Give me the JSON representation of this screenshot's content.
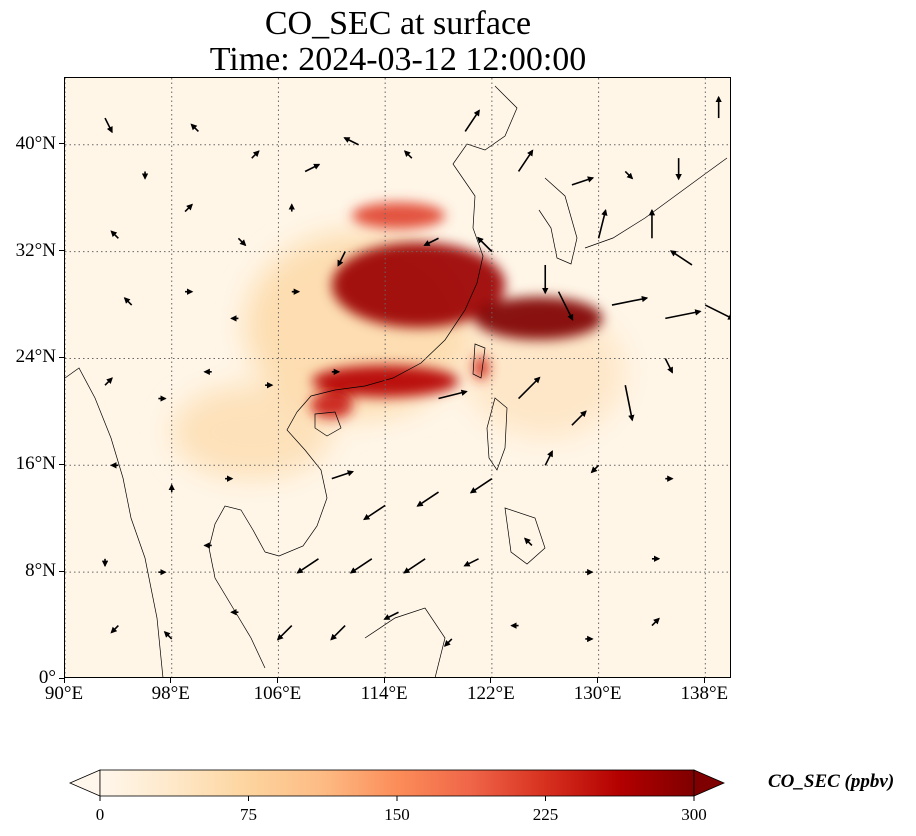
{
  "title": {
    "line1": "CO_SEC at surface",
    "line2": "Time: 2024-03-12 12:00:00"
  },
  "map": {
    "projection": "PlateCarree",
    "lon_range": [
      90,
      140
    ],
    "lat_range": [
      0,
      45
    ],
    "gridlines": "dotted",
    "background_color": "#fff6e8",
    "lat_ticks": [
      {
        "value": 0,
        "label": "0°"
      },
      {
        "value": 8,
        "label": "8°N"
      },
      {
        "value": 16,
        "label": "16°N"
      },
      {
        "value": 24,
        "label": "24°N"
      },
      {
        "value": 32,
        "label": "32°N"
      },
      {
        "value": 40,
        "label": "40°N"
      }
    ],
    "lon_ticks": [
      {
        "value": 90,
        "label": "90°E"
      },
      {
        "value": 98,
        "label": "98°E"
      },
      {
        "value": 106,
        "label": "106°E"
      },
      {
        "value": 114,
        "label": "114°E"
      },
      {
        "value": 122,
        "label": "122°E"
      },
      {
        "value": 130,
        "label": "130°E"
      },
      {
        "value": 138,
        "label": "138°E"
      }
    ],
    "field_regions": [
      {
        "name": "north-china-plain-plume",
        "lon": 116.5,
        "lat": 29.5,
        "rlon": 6.5,
        "rlat": 3.2,
        "level": 280
      },
      {
        "name": "east-china-sea-band",
        "lon": 125.5,
        "lat": 27.0,
        "rlon": 4.8,
        "rlat": 1.6,
        "level": 300
      },
      {
        "name": "south-china-coast-band",
        "lon": 114.0,
        "lat": 22.3,
        "rlon": 5.5,
        "rlat": 1.2,
        "level": 260
      },
      {
        "name": "hainan-gulf",
        "lon": 110.0,
        "lat": 20.5,
        "rlon": 1.6,
        "rlat": 1.0,
        "level": 240
      },
      {
        "name": "taiwan-spot",
        "lon": 121.2,
        "lat": 23.3,
        "rlon": 0.6,
        "rlat": 0.9,
        "level": 230
      },
      {
        "name": "northern-patch",
        "lon": 115.0,
        "lat": 34.7,
        "rlon": 3.5,
        "rlat": 1.0,
        "level": 210
      },
      {
        "name": "indochina-haze",
        "lon": 104.0,
        "lat": 18.5,
        "rlon": 6.0,
        "rlat": 3.5,
        "level": 60
      },
      {
        "name": "south-china-haze",
        "lon": 112.0,
        "lat": 26.5,
        "rlon": 8.5,
        "rlat": 7.0,
        "level": 70
      },
      {
        "name": "pacific-outflow-haze",
        "lon": 126.0,
        "lat": 23.0,
        "rlon": 6.0,
        "rlat": 5.0,
        "level": 45
      }
    ]
  },
  "colorbar": {
    "label": "CO_SEC (ppbv)",
    "min": 0,
    "max": 300,
    "extend": "both",
    "colormap": "OrRd",
    "stops": [
      "#fff7ec",
      "#fee8c8",
      "#fdd49e",
      "#fdbb84",
      "#fc8d59",
      "#ef6548",
      "#d7301f",
      "#b30000",
      "#7f0000"
    ],
    "ticks": [
      {
        "value": 0,
        "label": "0"
      },
      {
        "value": 75,
        "label": "75"
      },
      {
        "value": 150,
        "label": "150"
      },
      {
        "value": 225,
        "label": "225"
      },
      {
        "value": 300,
        "label": "300"
      }
    ]
  },
  "wind_vectors": [
    {
      "lon": 93,
      "lat": 42,
      "u": 1,
      "v": -2
    },
    {
      "lon": 96,
      "lat": 38,
      "u": 0,
      "v": -1
    },
    {
      "lon": 100,
      "lat": 41,
      "u": -1,
      "v": 1
    },
    {
      "lon": 104,
      "lat": 39,
      "u": 1,
      "v": 1
    },
    {
      "lon": 108,
      "lat": 38,
      "u": 2,
      "v": 1
    },
    {
      "lon": 112,
      "lat": 40,
      "u": -2,
      "v": 1
    },
    {
      "lon": 116,
      "lat": 39,
      "u": -1,
      "v": 1
    },
    {
      "lon": 120,
      "lat": 41,
      "u": 2,
      "v": 3
    },
    {
      "lon": 124,
      "lat": 38,
      "u": 2,
      "v": 3
    },
    {
      "lon": 128,
      "lat": 37,
      "u": 3,
      "v": 1
    },
    {
      "lon": 132,
      "lat": 38,
      "u": 1,
      "v": -1
    },
    {
      "lon": 136,
      "lat": 39,
      "u": 0,
      "v": -3
    },
    {
      "lon": 139,
      "lat": 42,
      "u": 0,
      "v": 3
    },
    {
      "lon": 94,
      "lat": 33,
      "u": -1,
      "v": 1
    },
    {
      "lon": 99,
      "lat": 35,
      "u": 1,
      "v": 1
    },
    {
      "lon": 103,
      "lat": 33,
      "u": 1,
      "v": -1
    },
    {
      "lon": 107,
      "lat": 35,
      "u": 0,
      "v": 1
    },
    {
      "lon": 111,
      "lat": 32,
      "u": -1,
      "v": -2
    },
    {
      "lon": 118,
      "lat": 33,
      "u": -2,
      "v": -1
    },
    {
      "lon": 122,
      "lat": 32,
      "u": -2,
      "v": 2
    },
    {
      "lon": 126,
      "lat": 31,
      "u": 0,
      "v": -4
    },
    {
      "lon": 130,
      "lat": 33,
      "u": 1,
      "v": 4
    },
    {
      "lon": 134,
      "lat": 33,
      "u": 0,
      "v": 4
    },
    {
      "lon": 137,
      "lat": 31,
      "u": -3,
      "v": 2
    },
    {
      "lon": 95,
      "lat": 28,
      "u": -1,
      "v": 1
    },
    {
      "lon": 99,
      "lat": 29,
      "u": 1,
      "v": 0
    },
    {
      "lon": 103,
      "lat": 27,
      "u": -1,
      "v": 0
    },
    {
      "lon": 107,
      "lat": 29,
      "u": 1,
      "v": 0
    },
    {
      "lon": 127,
      "lat": 29,
      "u": 2,
      "v": -4
    },
    {
      "lon": 131,
      "lat": 28,
      "u": 5,
      "v": 1
    },
    {
      "lon": 135,
      "lat": 27,
      "u": 5,
      "v": 1
    },
    {
      "lon": 138,
      "lat": 28,
      "u": 4,
      "v": -2
    },
    {
      "lon": 93,
      "lat": 22,
      "u": 1,
      "v": 1
    },
    {
      "lon": 97,
      "lat": 21,
      "u": 1,
      "v": 0
    },
    {
      "lon": 101,
      "lat": 23,
      "u": -1,
      "v": 0
    },
    {
      "lon": 105,
      "lat": 22,
      "u": 1,
      "v": 0
    },
    {
      "lon": 110,
      "lat": 23,
      "u": 1,
      "v": 0
    },
    {
      "lon": 118,
      "lat": 21,
      "u": 4,
      "v": 1
    },
    {
      "lon": 124,
      "lat": 21,
      "u": 3,
      "v": 3
    },
    {
      "lon": 128,
      "lat": 19,
      "u": 2,
      "v": 2
    },
    {
      "lon": 132,
      "lat": 22,
      "u": 1,
      "v": -5
    },
    {
      "lon": 135,
      "lat": 24,
      "u": 1,
      "v": -2
    },
    {
      "lon": 94,
      "lat": 16,
      "u": -1,
      "v": 0
    },
    {
      "lon": 98,
      "lat": 14,
      "u": 0,
      "v": 1
    },
    {
      "lon": 102,
      "lat": 15,
      "u": 1,
      "v": 0
    },
    {
      "lon": 110,
      "lat": 15,
      "u": 3,
      "v": 1
    },
    {
      "lon": 114,
      "lat": 13,
      "u": -3,
      "v": -2
    },
    {
      "lon": 118,
      "lat": 14,
      "u": -3,
      "v": -2
    },
    {
      "lon": 122,
      "lat": 15,
      "u": -3,
      "v": -2
    },
    {
      "lon": 126,
      "lat": 16,
      "u": 1,
      "v": 2
    },
    {
      "lon": 130,
      "lat": 16,
      "u": -1,
      "v": -1
    },
    {
      "lon": 135,
      "lat": 15,
      "u": 1,
      "v": 0
    },
    {
      "lon": 93,
      "lat": 9,
      "u": 0,
      "v": -1
    },
    {
      "lon": 97,
      "lat": 8,
      "u": 1,
      "v": 0
    },
    {
      "lon": 101,
      "lat": 10,
      "u": -1,
      "v": 0
    },
    {
      "lon": 109,
      "lat": 9,
      "u": -3,
      "v": -2
    },
    {
      "lon": 113,
      "lat": 9,
      "u": -3,
      "v": -2
    },
    {
      "lon": 117,
      "lat": 9,
      "u": -3,
      "v": -2
    },
    {
      "lon": 121,
      "lat": 9,
      "u": -2,
      "v": -1
    },
    {
      "lon": 125,
      "lat": 10,
      "u": -1,
      "v": 1
    },
    {
      "lon": 129,
      "lat": 8,
      "u": 1,
      "v": 0
    },
    {
      "lon": 134,
      "lat": 9,
      "u": 1,
      "v": 0
    },
    {
      "lon": 94,
      "lat": 4,
      "u": -1,
      "v": -1
    },
    {
      "lon": 98,
      "lat": 3,
      "u": -1,
      "v": 1
    },
    {
      "lon": 103,
      "lat": 5,
      "u": -1,
      "v": 0
    },
    {
      "lon": 107,
      "lat": 4,
      "u": -2,
      "v": -2
    },
    {
      "lon": 111,
      "lat": 4,
      "u": -2,
      "v": -2
    },
    {
      "lon": 115,
      "lat": 5,
      "u": -2,
      "v": -1
    },
    {
      "lon": 119,
      "lat": 3,
      "u": -1,
      "v": -1
    },
    {
      "lon": 124,
      "lat": 4,
      "u": -1,
      "v": 0
    },
    {
      "lon": 129,
      "lat": 3,
      "u": 1,
      "v": 0
    },
    {
      "lon": 134,
      "lat": 4,
      "u": 1,
      "v": 1
    }
  ]
}
